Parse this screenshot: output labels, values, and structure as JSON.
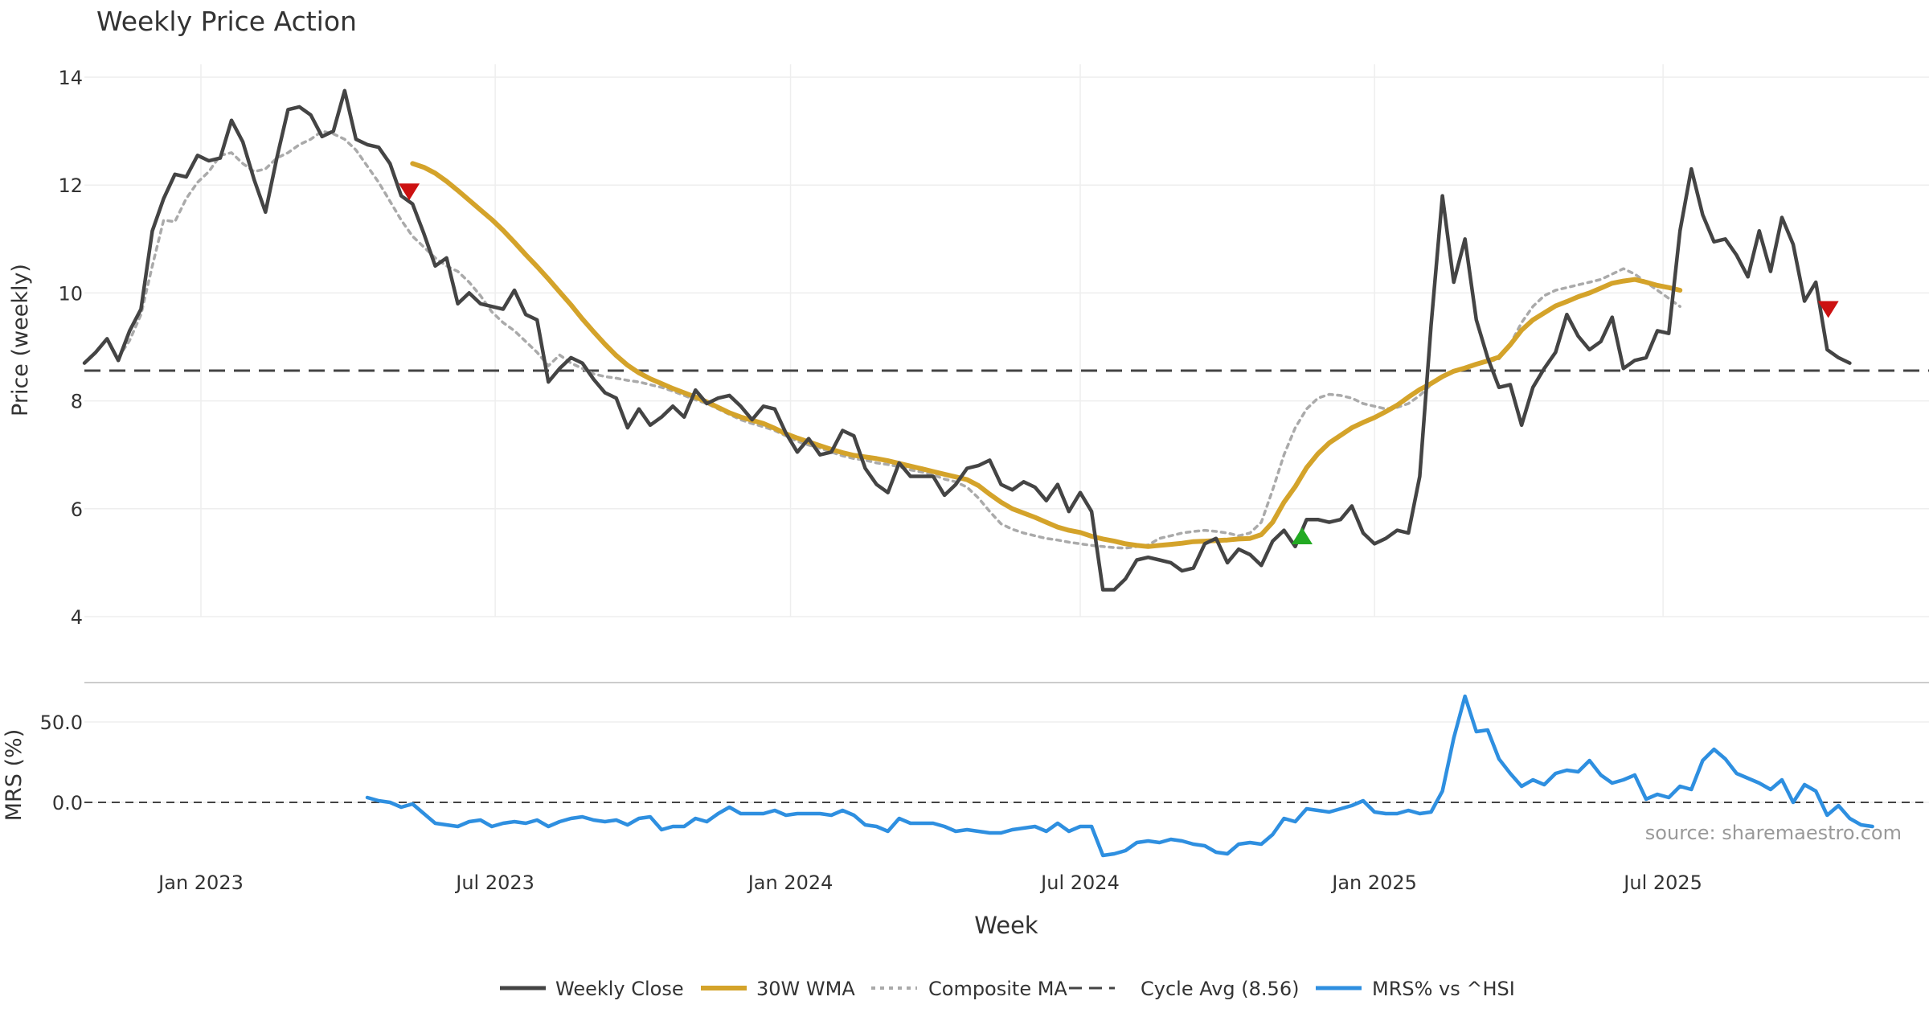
{
  "chart_data": {
    "type": "line",
    "title": "Weekly Price Action",
    "xlabel": "Week",
    "source": "source: sharemaestro.com",
    "x_ticks": [
      "Jan 2023",
      "Jul 2023",
      "Jan 2024",
      "Jul 2024",
      "Jan 2025",
      "Jul 2025"
    ],
    "x_tick_weeks": [
      10.3,
      36.3,
      62.4,
      88.0,
      114.0,
      139.5
    ],
    "x_range_weeks": [
      0,
      163
    ],
    "colors": {
      "close": "#444444",
      "wma": "#d4a32a",
      "composite": "#aaaaaa",
      "cycle": "#444444",
      "mrs": "#2e8fe0",
      "sell": "#cc1111",
      "buy": "#22aa22"
    },
    "legend": [
      "Weekly Close",
      "30W WMA",
      "Composite MA",
      "Cycle Avg (8.56)",
      "MRS% vs ^HSI"
    ],
    "price_panel": {
      "ylabel": "Price (weekly)",
      "ylim": [
        4,
        14
      ],
      "y_ticks": [
        "4",
        "6",
        "8",
        "10",
        "12",
        "14"
      ],
      "y_tick_values": [
        4,
        6,
        8,
        10,
        12,
        14
      ],
      "cycle_avg": 8.56,
      "series": [
        {
          "name": "Weekly Close",
          "start_week": 0,
          "values": [
            8.7,
            8.9,
            9.15,
            8.75,
            9.3,
            9.7,
            11.15,
            11.75,
            12.2,
            12.15,
            12.55,
            12.45,
            12.5,
            13.2,
            12.8,
            12.1,
            11.5,
            12.5,
            13.4,
            13.45,
            13.3,
            12.9,
            13.0,
            13.75,
            12.85,
            12.75,
            12.7,
            12.4,
            11.8,
            11.65,
            11.1,
            10.5,
            10.65,
            9.8,
            10.0,
            9.8,
            9.75,
            9.7,
            10.05,
            9.6,
            9.5,
            8.35,
            8.6,
            8.8,
            8.7,
            8.4,
            8.15,
            8.05,
            7.5,
            7.85,
            7.55,
            7.7,
            7.9,
            7.7,
            8.2,
            7.95,
            8.05,
            8.1,
            7.9,
            7.65,
            7.9,
            7.85,
            7.4,
            7.05,
            7.3,
            7.0,
            7.05,
            7.45,
            7.35,
            6.75,
            6.45,
            6.3,
            6.85,
            6.6,
            6.6,
            6.6,
            6.25,
            6.45,
            6.75,
            6.8,
            6.9,
            6.45,
            6.35,
            6.5,
            6.4,
            6.15,
            6.45,
            5.95,
            6.3,
            5.95,
            4.5,
            4.5,
            4.7,
            5.05,
            5.1,
            5.05,
            5.0,
            4.85,
            4.9,
            5.35,
            5.45,
            5.0,
            5.25,
            5.15,
            4.95,
            5.4,
            5.6,
            5.3,
            5.8,
            5.8,
            5.75,
            5.8,
            6.05,
            5.55,
            5.35,
            5.45,
            5.6,
            5.55,
            6.6,
            9.4,
            11.8,
            10.2,
            11.0,
            9.5,
            8.8,
            8.25,
            8.3,
            7.55,
            8.25,
            8.6,
            8.9,
            9.6,
            9.2,
            8.95,
            9.1,
            9.55,
            8.6,
            8.75,
            8.8,
            9.3,
            9.25,
            11.15,
            12.3,
            11.45,
            10.95,
            11.0,
            10.7,
            10.3,
            11.15,
            10.4,
            11.4,
            10.9,
            9.85,
            10.2,
            8.95,
            8.8,
            8.7
          ]
        },
        {
          "name": "30W WMA",
          "start_week": 29,
          "values": [
            12.4,
            12.33,
            12.22,
            12.07,
            11.9,
            11.72,
            11.54,
            11.36,
            11.16,
            10.94,
            10.71,
            10.49,
            10.26,
            10.02,
            9.78,
            9.52,
            9.28,
            9.05,
            8.84,
            8.66,
            8.52,
            8.41,
            8.32,
            8.23,
            8.15,
            8.07,
            7.98,
            7.88,
            7.78,
            7.7,
            7.64,
            7.58,
            7.49,
            7.39,
            7.31,
            7.24,
            7.17,
            7.1,
            7.04,
            6.99,
            6.96,
            6.93,
            6.89,
            6.84,
            6.79,
            6.74,
            6.69,
            6.64,
            6.59,
            6.54,
            6.43,
            6.27,
            6.12,
            6.0,
            5.92,
            5.84,
            5.75,
            5.66,
            5.6,
            5.56,
            5.49,
            5.44,
            5.4,
            5.35,
            5.32,
            5.3,
            5.32,
            5.34,
            5.36,
            5.39,
            5.4,
            5.41,
            5.42,
            5.44,
            5.45,
            5.52,
            5.75,
            6.12,
            6.41,
            6.76,
            7.02,
            7.22,
            7.36,
            7.5,
            7.6,
            7.69,
            7.8,
            7.92,
            8.07,
            8.21,
            8.32,
            8.45,
            8.55,
            8.61,
            8.68,
            8.74,
            8.81,
            9.04,
            9.31,
            9.5,
            9.63,
            9.76,
            9.84,
            9.93,
            10.0,
            10.09,
            10.18,
            10.22,
            10.25,
            10.2,
            10.14,
            10.1,
            10.05
          ]
        },
        {
          "name": "Composite MA",
          "start_week": 3,
          "values": [
            8.8,
            9.12,
            9.6,
            10.5,
            11.35,
            11.32,
            11.75,
            12.05,
            12.25,
            12.55,
            12.6,
            12.4,
            12.25,
            12.3,
            12.5,
            12.6,
            12.75,
            12.85,
            13.0,
            12.95,
            12.85,
            12.65,
            12.35,
            12.05,
            11.7,
            11.35,
            11.05,
            10.85,
            10.65,
            10.5,
            10.4,
            10.2,
            9.95,
            9.65,
            9.45,
            9.3,
            9.1,
            8.9,
            8.65,
            8.85,
            8.7,
            8.6,
            8.5,
            8.45,
            8.42,
            8.38,
            8.35,
            8.3,
            8.25,
            8.18,
            8.1,
            8.02,
            7.95,
            7.85,
            7.75,
            7.65,
            7.58,
            7.52,
            7.45,
            7.35,
            7.25,
            7.18,
            7.12,
            7.05,
            6.98,
            6.93,
            6.9,
            6.85,
            6.82,
            6.78,
            6.72,
            6.68,
            6.63,
            6.55,
            6.5,
            6.4,
            6.2,
            5.95,
            5.72,
            5.62,
            5.55,
            5.5,
            5.45,
            5.42,
            5.38,
            5.35,
            5.32,
            5.3,
            5.28,
            5.27,
            5.3,
            5.33,
            5.45,
            5.5,
            5.55,
            5.58,
            5.6,
            5.58,
            5.55,
            5.5,
            5.55,
            5.75,
            6.35,
            7.0,
            7.5,
            7.85,
            8.05,
            8.12,
            8.1,
            8.05,
            7.95,
            7.9,
            7.85,
            7.88,
            7.95,
            8.1,
            8.3,
            8.45,
            8.55,
            8.62,
            8.68,
            8.72,
            8.78,
            9.05,
            9.45,
            9.75,
            9.95,
            10.05,
            10.1,
            10.15,
            10.2,
            10.25,
            10.35,
            10.45,
            10.35,
            10.2,
            10.05,
            9.9,
            9.75
          ]
        }
      ],
      "markers": [
        {
          "type": "sell",
          "week": 28.7,
          "price": 11.88
        },
        {
          "type": "buy",
          "week": 107.6,
          "price": 5.49
        },
        {
          "type": "sell",
          "week": 154.1,
          "price": 9.7
        }
      ]
    },
    "mrs_panel": {
      "ylabel": "MRS (%)",
      "ylim": [
        -40,
        70
      ],
      "y_ticks": [
        "50.0",
        "0.0"
      ],
      "y_tick_values": [
        50,
        0
      ],
      "series": [
        {
          "name": "MRS% vs ^HSI",
          "start_week": 25,
          "values": [
            3,
            1,
            0,
            -3,
            -1,
            -7,
            -13,
            -14,
            -15,
            -12,
            -11,
            -15,
            -13,
            -12,
            -13,
            -11,
            -15,
            -12,
            -10,
            -9,
            -11,
            -12,
            -11,
            -14,
            -10,
            -9,
            -17,
            -15,
            -15,
            -10,
            -12,
            -7,
            -3,
            -7,
            -7,
            -7,
            -5,
            -8,
            -7,
            -7,
            -7,
            -8,
            -5,
            -8,
            -14,
            -15,
            -18,
            -10,
            -13,
            -13,
            -13,
            -15,
            -18,
            -17,
            -18,
            -19,
            -19,
            -17,
            -16,
            -15,
            -18,
            -13,
            -18,
            -15,
            -15,
            -33,
            -32,
            -30,
            -25,
            -24,
            -25,
            -23,
            -24,
            -26,
            -27,
            -31,
            -32,
            -26,
            -25,
            -26,
            -20,
            -10,
            -12,
            -4,
            -5,
            -6,
            -4,
            -2,
            1,
            -6,
            -7,
            -7,
            -5,
            -7,
            -6,
            7,
            40,
            66,
            44,
            45,
            27,
            18,
            10,
            14,
            11,
            18,
            20,
            19,
            26,
            17,
            12,
            14,
            17,
            2,
            5,
            3,
            10,
            8,
            26,
            33,
            27,
            18,
            15,
            12,
            8,
            14,
            0,
            11,
            7,
            -8,
            -2,
            -10,
            -14,
            -15
          ]
        }
      ]
    }
  }
}
